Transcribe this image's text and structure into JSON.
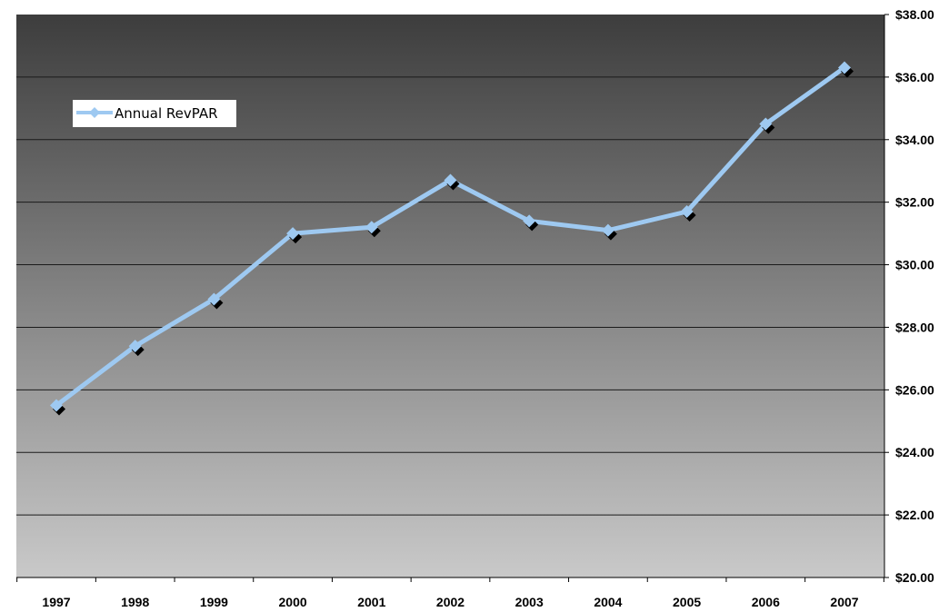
{
  "chart_data": {
    "type": "line",
    "title": "",
    "xlabel": "",
    "ylabel": "",
    "categories": [
      "1997",
      "1998",
      "1999",
      "2000",
      "2001",
      "2002",
      "2003",
      "2004",
      "2005",
      "2006",
      "2007"
    ],
    "series": [
      {
        "name": "Annual RevPAR",
        "values": [
          25.5,
          27.4,
          28.9,
          31.0,
          31.2,
          32.7,
          31.4,
          31.1,
          31.7,
          34.5,
          36.3
        ],
        "color": "#9ec9f1"
      }
    ],
    "ylim": [
      20,
      38
    ],
    "yticks": [
      "$20.00",
      "$22.00",
      "$24.00",
      "$26.00",
      "$28.00",
      "$30.00",
      "$32.00",
      "$34.00",
      "$36.00",
      "$38.00"
    ],
    "y_axis_side": "right",
    "grid": true,
    "legend_position": "top-left",
    "colors": {
      "plot_top": "#3d3d3d",
      "plot_bottom": "#c9c9c9",
      "gridline": "#1a1a1a",
      "marker_shadow": "#000000"
    }
  }
}
